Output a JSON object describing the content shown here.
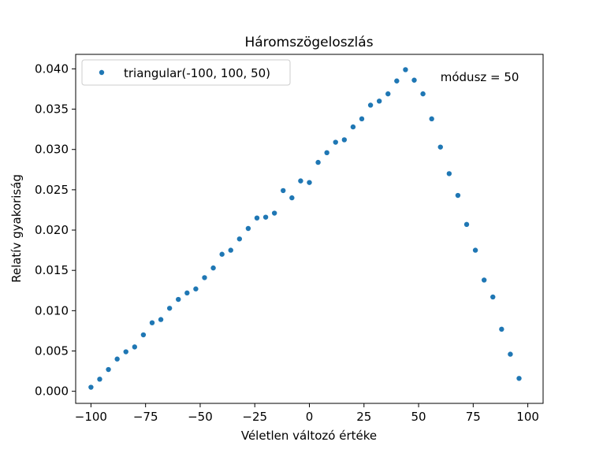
{
  "chart_data": {
    "type": "scatter",
    "title": "Háromszögeloszlás",
    "xlabel": "Véletlen változó értéke",
    "ylabel": "Relatív gyakoriság",
    "xlim": [
      -107,
      107
    ],
    "ylim": [
      -0.0015,
      0.0418
    ],
    "xticks": [
      -100,
      -75,
      -50,
      -25,
      0,
      25,
      50,
      75,
      100
    ],
    "xtick_labels": [
      "−100",
      "−75",
      "−50",
      "−25",
      "0",
      "25",
      "50",
      "75",
      "100"
    ],
    "yticks": [
      0.0,
      0.005,
      0.01,
      0.015,
      0.02,
      0.025,
      0.03,
      0.035,
      0.04
    ],
    "ytick_labels": [
      "0.000",
      "0.005",
      "0.010",
      "0.015",
      "0.020",
      "0.025",
      "0.030",
      "0.035",
      "0.040"
    ],
    "legend": {
      "label": "triangular(-100, 100, 50)",
      "placement": "top-left"
    },
    "annotation": {
      "text": "módusz = 50",
      "x": 60,
      "y": 0.0385
    },
    "color": "#1f77b4",
    "grid": false,
    "series": [
      {
        "name": "triangular(-100, 100, 50)",
        "x": [
          -100,
          -96,
          -92,
          -88,
          -84,
          -80,
          -76,
          -72,
          -68,
          -64,
          -60,
          -56,
          -52,
          -48,
          -44,
          -40,
          -36,
          -32,
          -28,
          -24,
          -20,
          -16,
          -12,
          -8,
          -4,
          0,
          4,
          8,
          12,
          16,
          20,
          24,
          28,
          32,
          36,
          40,
          44,
          48,
          52,
          56,
          60,
          64,
          68,
          72,
          76,
          80,
          84,
          88,
          92,
          96
        ],
        "y": [
          0.0005,
          0.0015,
          0.0027,
          0.004,
          0.0049,
          0.0055,
          0.007,
          0.0085,
          0.0089,
          0.0103,
          0.0114,
          0.0122,
          0.0127,
          0.0141,
          0.0153,
          0.017,
          0.0175,
          0.0189,
          0.0202,
          0.0215,
          0.0216,
          0.0221,
          0.0249,
          0.024,
          0.0261,
          0.0259,
          0.0284,
          0.0296,
          0.0309,
          0.0312,
          0.0328,
          0.0338,
          0.0355,
          0.036,
          0.0369,
          0.0385,
          0.0399,
          0.0386,
          0.0369,
          0.0338,
          0.0303,
          0.027,
          0.0243,
          0.0207,
          0.0175,
          0.0138,
          0.0117,
          0.0077,
          0.0046,
          0.0016
        ]
      }
    ]
  }
}
